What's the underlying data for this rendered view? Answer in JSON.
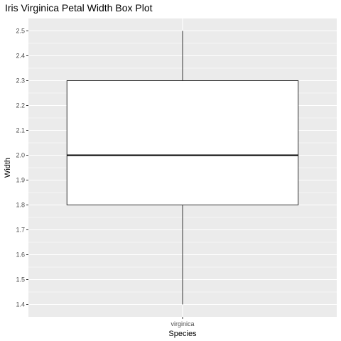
{
  "chart_data": {
    "type": "box",
    "title": "Iris Virginica Petal Width Box Plot",
    "xlabel": "Species",
    "ylabel": "Width",
    "categories": [
      "virginica"
    ],
    "boxes": [
      {
        "category": "virginica",
        "min": 1.4,
        "q1": 1.8,
        "median": 2.0,
        "q3": 2.3,
        "max": 2.5
      }
    ],
    "ylim": [
      1.35,
      2.55
    ],
    "yticks": [
      1.4,
      1.5,
      1.6,
      1.7,
      1.8,
      1.9,
      2.0,
      2.1,
      2.2,
      2.3,
      2.4,
      2.5
    ],
    "ytick_labels": [
      "1.4",
      "1.5",
      "1.6",
      "1.7",
      "1.8",
      "1.9",
      "2.0",
      "2.1",
      "2.2",
      "2.3",
      "2.4",
      "2.5"
    ],
    "grid": true,
    "legend": "none",
    "colors": {
      "panel_background": "#ebebeb",
      "grid": "#ffffff",
      "box_fill": "#ffffff",
      "box_stroke": "#333333",
      "tick_text": "#4d4d4d"
    }
  }
}
